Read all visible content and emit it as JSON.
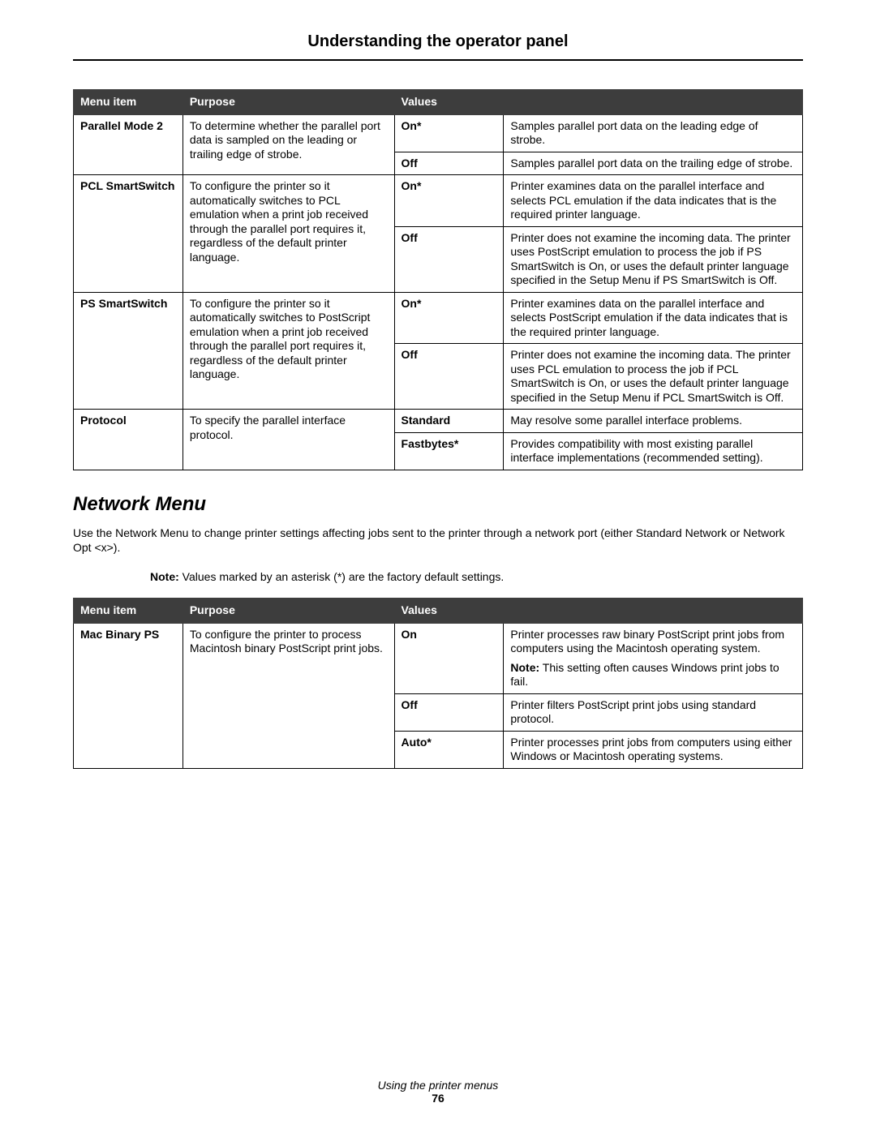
{
  "page": {
    "title": "Understanding the operator panel",
    "footer_title": "Using the printer menus",
    "footer_page": "76"
  },
  "table1": {
    "headers": {
      "c1": "Menu item",
      "c2": "Purpose",
      "c3": "Values"
    },
    "rows": [
      {
        "menu": "Parallel Mode 2",
        "purpose": "To determine whether the parallel port data is sampled on the leading or trailing edge of strobe.",
        "values": [
          {
            "label": "On*",
            "desc": "Samples parallel port data on the leading edge of strobe."
          },
          {
            "label": "Off",
            "desc": "Samples parallel port data on the trailing edge of strobe."
          }
        ]
      },
      {
        "menu": "PCL SmartSwitch",
        "purpose": "To configure the printer so it automatically switches to PCL emulation when a print job received through the parallel port requires it, regardless of the default printer language.",
        "values": [
          {
            "label": "On*",
            "desc": "Printer examines data on the parallel interface and selects PCL emulation if the data indicates that is the required printer language."
          },
          {
            "label": "Off",
            "desc": "Printer does not examine the incoming data. The printer uses PostScript emulation to process the job if PS SmartSwitch is On, or uses the default printer language specified in the Setup Menu if PS SmartSwitch is Off."
          }
        ]
      },
      {
        "menu": "PS SmartSwitch",
        "purpose": "To configure the printer so it automatically switches to PostScript emulation when a print job received through the parallel port requires it, regardless of the default printer language.",
        "values": [
          {
            "label": "On*",
            "desc": "Printer examines data on the parallel interface and selects PostScript emulation if the data indicates that is the required printer language."
          },
          {
            "label": "Off",
            "desc": "Printer does not examine the incoming data. The printer uses PCL emulation to process the job if PCL SmartSwitch is On, or uses the default printer language specified in the Setup Menu if PCL SmartSwitch is Off."
          }
        ]
      },
      {
        "menu": "Protocol",
        "purpose": "To specify the parallel interface protocol.",
        "values": [
          {
            "label": "Standard",
            "desc": "May resolve some parallel interface problems."
          },
          {
            "label": "Fastbytes*",
            "desc": "Provides compatibility with most existing parallel interface implementations (recommended setting)."
          }
        ]
      }
    ]
  },
  "section2": {
    "heading": "Network Menu",
    "intro": "Use the Network Menu to change printer settings affecting jobs sent to the printer through a network port (either Standard Network or Network Opt <x>).",
    "note_label": "Note:",
    "note_text": " Values marked by an asterisk (*) are the factory default settings."
  },
  "table2": {
    "headers": {
      "c1": "Menu item",
      "c2": "Purpose",
      "c3": "Values"
    },
    "rows": [
      {
        "menu": "Mac Binary PS",
        "purpose": "To configure the printer to process Macintosh binary PostScript print jobs.",
        "values": [
          {
            "label": "On",
            "desc": "Printer processes raw binary PostScript print jobs from computers using the Macintosh operating system.",
            "note_label": "Note:",
            "note_text": " This setting often causes Windows print jobs to fail."
          },
          {
            "label": "Off",
            "desc": "Printer filters PostScript print jobs using standard protocol."
          },
          {
            "label": "Auto*",
            "desc": "Printer processes print jobs from computers using either Windows or Macintosh operating systems."
          }
        ]
      }
    ]
  }
}
